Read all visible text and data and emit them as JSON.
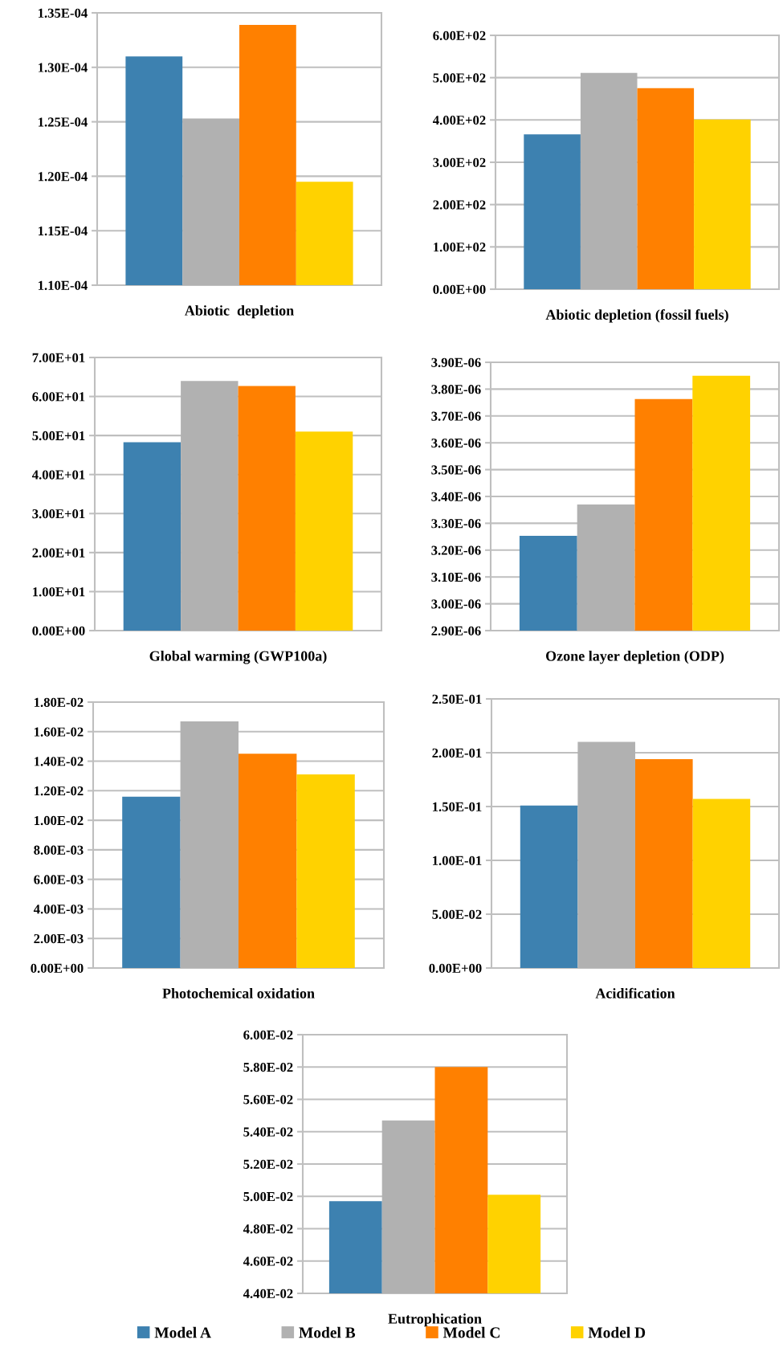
{
  "chart_data": [
    {
      "type": "bar",
      "categories": [
        null
      ],
      "xlabel": "Abiotic  depletion",
      "ylim": [
        0.00011,
        0.000135
      ],
      "grid": "y",
      "legend": "bottom",
      "yticks": [
        {
          "value": 0.00011,
          "label": "1.10E-04"
        },
        {
          "value": 0.000115,
          "label": "1.15E-04"
        },
        {
          "value": 0.00012,
          "label": "1.20E-04"
        },
        {
          "value": 0.000125,
          "label": "1.25E-04"
        },
        {
          "value": 0.00013,
          "label": "1.30E-04"
        },
        {
          "value": 0.000135,
          "label": "1.35E-04"
        }
      ],
      "series": [
        {
          "name": "Model A",
          "color": "#3d81b0",
          "values": [
            0.000131
          ]
        },
        {
          "name": "Model B",
          "color": "#b1b1b1",
          "values": [
            0.0001253
          ]
        },
        {
          "name": "Model C",
          "color": "#ff8000",
          "values": [
            0.0001339
          ]
        },
        {
          "name": "Model D",
          "color": "#ffd200",
          "values": [
            0.0001195
          ]
        }
      ]
    },
    {
      "type": "bar",
      "categories": [
        null
      ],
      "xlabel": "Abiotic depletion (fossil fuels)",
      "ylim": [
        0,
        600
      ],
      "grid": "y",
      "legend": "bottom",
      "yticks": [
        {
          "value": 0,
          "label": "0.00E+00"
        },
        {
          "value": 100,
          "label": "1.00E+02"
        },
        {
          "value": 200,
          "label": "2.00E+02"
        },
        {
          "value": 300,
          "label": "3.00E+02"
        },
        {
          "value": 400,
          "label": "4.00E+02"
        },
        {
          "value": 500,
          "label": "5.00E+02"
        },
        {
          "value": 600,
          "label": "6.00E+02"
        }
      ],
      "series": [
        {
          "name": "Model A",
          "color": "#3d81b0",
          "values": [
            366
          ]
        },
        {
          "name": "Model B",
          "color": "#b1b1b1",
          "values": [
            511
          ]
        },
        {
          "name": "Model C",
          "color": "#ff8000",
          "values": [
            475
          ]
        },
        {
          "name": "Model D",
          "color": "#ffd200",
          "values": [
            401
          ]
        }
      ]
    },
    {
      "type": "bar",
      "categories": [
        null
      ],
      "xlabel": "Global warming (GWP100a)",
      "ylim": [
        0,
        70
      ],
      "grid": "y",
      "legend": "bottom",
      "yticks": [
        {
          "value": 0,
          "label": "0.00E+00"
        },
        {
          "value": 10,
          "label": "1.00E+01"
        },
        {
          "value": 20,
          "label": "2.00E+01"
        },
        {
          "value": 30,
          "label": "3.00E+01"
        },
        {
          "value": 40,
          "label": "4.00E+01"
        },
        {
          "value": 50,
          "label": "5.00E+01"
        },
        {
          "value": 60,
          "label": "6.00E+01"
        },
        {
          "value": 70,
          "label": "7.00E+01"
        }
      ],
      "series": [
        {
          "name": "Model A",
          "color": "#3d81b0",
          "values": [
            48.3
          ]
        },
        {
          "name": "Model B",
          "color": "#b1b1b1",
          "values": [
            64.0
          ]
        },
        {
          "name": "Model C",
          "color": "#ff8000",
          "values": [
            62.7
          ]
        },
        {
          "name": "Model D",
          "color": "#ffd200",
          "values": [
            51.0
          ]
        }
      ]
    },
    {
      "type": "bar",
      "categories": [
        null
      ],
      "xlabel": "Ozone layer depletion (ODP)",
      "ylim": [
        2.9e-06,
        3.9e-06
      ],
      "grid": "y",
      "legend": "bottom",
      "yticks": [
        {
          "value": 2.9e-06,
          "label": "2.90E-06"
        },
        {
          "value": 3e-06,
          "label": "3.00E-06"
        },
        {
          "value": 3.1e-06,
          "label": "3.10E-06"
        },
        {
          "value": 3.2e-06,
          "label": "3.20E-06"
        },
        {
          "value": 3.3e-06,
          "label": "3.30E-06"
        },
        {
          "value": 3.4e-06,
          "label": "3.40E-06"
        },
        {
          "value": 3.5e-06,
          "label": "3.50E-06"
        },
        {
          "value": 3.6e-06,
          "label": "3.60E-06"
        },
        {
          "value": 3.7e-06,
          "label": "3.70E-06"
        },
        {
          "value": 3.8e-06,
          "label": "3.80E-06"
        },
        {
          "value": 3.9e-06,
          "label": "3.90E-06"
        }
      ],
      "series": [
        {
          "name": "Model A",
          "color": "#3d81b0",
          "values": [
            3.253e-06
          ]
        },
        {
          "name": "Model B",
          "color": "#b1b1b1",
          "values": [
            3.37e-06
          ]
        },
        {
          "name": "Model C",
          "color": "#ff8000",
          "values": [
            3.763e-06
          ]
        },
        {
          "name": "Model D",
          "color": "#ffd200",
          "values": [
            3.85e-06
          ]
        }
      ]
    },
    {
      "type": "bar",
      "categories": [
        null
      ],
      "xlabel": "Photochemical oxidation",
      "ylim": [
        0,
        0.018
      ],
      "grid": "y",
      "legend": "bottom",
      "yticks": [
        {
          "value": 0,
          "label": "0.00E+00"
        },
        {
          "value": 0.002,
          "label": "2.00E-03"
        },
        {
          "value": 0.004,
          "label": "4.00E-03"
        },
        {
          "value": 0.006,
          "label": "6.00E-03"
        },
        {
          "value": 0.008,
          "label": "8.00E-03"
        },
        {
          "value": 0.01,
          "label": "1.00E-02"
        },
        {
          "value": 0.012,
          "label": "1.20E-02"
        },
        {
          "value": 0.014,
          "label": "1.40E-02"
        },
        {
          "value": 0.016,
          "label": "1.60E-02"
        },
        {
          "value": 0.018,
          "label": "1.80E-02"
        }
      ],
      "series": [
        {
          "name": "Model A",
          "color": "#3d81b0",
          "values": [
            0.0116
          ]
        },
        {
          "name": "Model B",
          "color": "#b1b1b1",
          "values": [
            0.0167
          ]
        },
        {
          "name": "Model C",
          "color": "#ff8000",
          "values": [
            0.0145
          ]
        },
        {
          "name": "Model D",
          "color": "#ffd200",
          "values": [
            0.0131
          ]
        }
      ]
    },
    {
      "type": "bar",
      "categories": [
        null
      ],
      "xlabel": "Acidification",
      "ylim": [
        0,
        0.25
      ],
      "grid": "y",
      "legend": "bottom",
      "yticks": [
        {
          "value": 0,
          "label": "0.00E+00"
        },
        {
          "value": 0.05,
          "label": "5.00E-02"
        },
        {
          "value": 0.1,
          "label": "1.00E-01"
        },
        {
          "value": 0.15,
          "label": "1.50E-01"
        },
        {
          "value": 0.2,
          "label": "2.00E-01"
        },
        {
          "value": 0.25,
          "label": "2.50E-01"
        }
      ],
      "series": [
        {
          "name": "Model A",
          "color": "#3d81b0",
          "values": [
            0.151
          ]
        },
        {
          "name": "Model B",
          "color": "#b1b1b1",
          "values": [
            0.21
          ]
        },
        {
          "name": "Model C",
          "color": "#ff8000",
          "values": [
            0.194
          ]
        },
        {
          "name": "Model D",
          "color": "#ffd200",
          "values": [
            0.157
          ]
        }
      ]
    },
    {
      "type": "bar",
      "categories": [
        null
      ],
      "xlabel": "Eutrophication",
      "ylim": [
        0.044,
        0.06
      ],
      "grid": "y",
      "legend": "bottom",
      "yticks": [
        {
          "value": 0.044,
          "label": "4.40E-02"
        },
        {
          "value": 0.046,
          "label": "4.60E-02"
        },
        {
          "value": 0.048,
          "label": "4.80E-02"
        },
        {
          "value": 0.05,
          "label": "5.00E-02"
        },
        {
          "value": 0.052,
          "label": "5.20E-02"
        },
        {
          "value": 0.054,
          "label": "5.40E-02"
        },
        {
          "value": 0.056,
          "label": "5.60E-02"
        },
        {
          "value": 0.058,
          "label": "5.80E-02"
        },
        {
          "value": 0.06,
          "label": "6.00E-02"
        }
      ],
      "series": [
        {
          "name": "Model A",
          "color": "#3d81b0",
          "values": [
            0.0497
          ]
        },
        {
          "name": "Model B",
          "color": "#b1b1b1",
          "values": [
            0.0547
          ]
        },
        {
          "name": "Model C",
          "color": "#ff8000",
          "values": [
            0.058
          ]
        },
        {
          "name": "Model D",
          "color": "#ffd200",
          "values": [
            0.0501
          ]
        }
      ]
    }
  ]
}
